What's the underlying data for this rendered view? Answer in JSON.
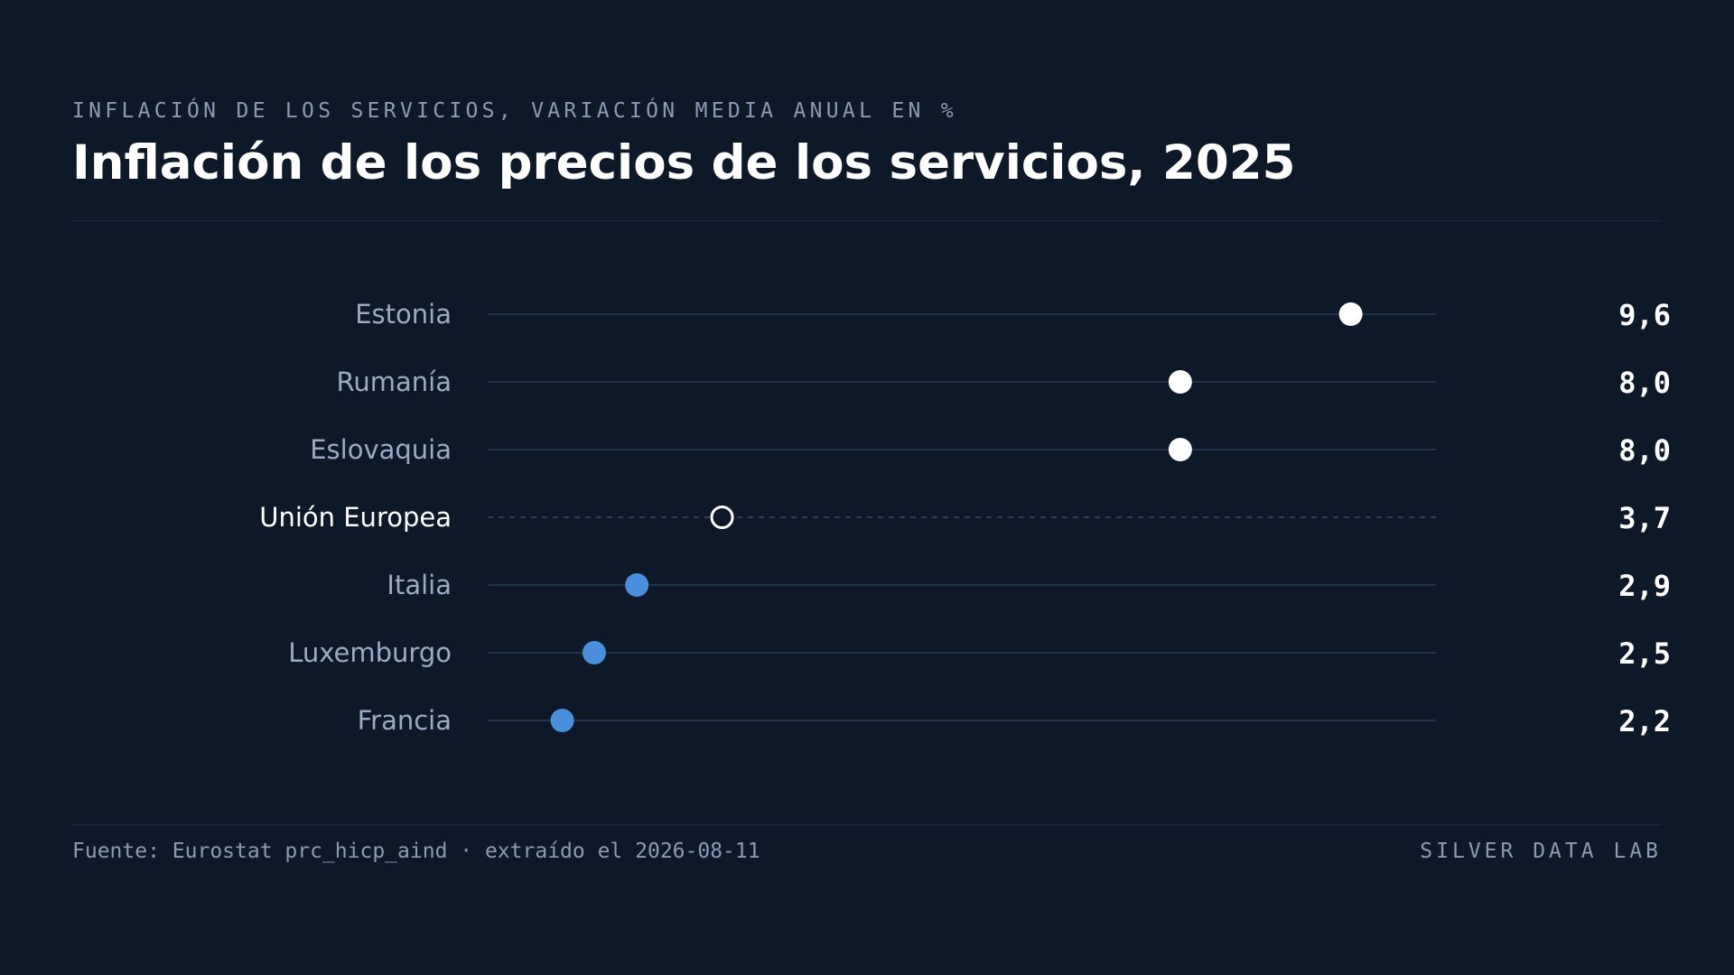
{
  "header": {
    "kicker": "INFLACIÓN DE LOS SERVICIOS, VARIACIÓN MEDIA ANUAL EN %",
    "title": "Inflación de los precios de los servicios, 2025"
  },
  "footer": {
    "source": "Fuente: Eurostat prc_hicp_aind · extraído el 2026-08-11",
    "brand": "SILVER DATA LAB"
  },
  "colors": {
    "background": "#0d1929",
    "above_reference": "#ffffff",
    "below_reference": "#4a8fdb",
    "reference": "#ffffff",
    "track": "#22344d",
    "label": "#9aabc4",
    "reference_label": "#ffffff",
    "value": "#ffffff"
  },
  "chart_data": {
    "type": "scatter",
    "style": "dot-plot",
    "categories": [
      "Estonia",
      "Rumanía",
      "Eslovaquia",
      "Unión Europea",
      "Italia",
      "Luxemburgo",
      "Francia"
    ],
    "values": [
      9.6,
      8.0,
      8.0,
      3.7,
      2.9,
      2.5,
      2.2
    ],
    "value_labels": [
      "9,6",
      "8,0",
      "8,0",
      "3,7",
      "2,9",
      "2,5",
      "2,2"
    ],
    "reference_category": "Unión Europea",
    "xlim": [
      1.5,
      10.4
    ],
    "grid": false,
    "legend": "none"
  }
}
